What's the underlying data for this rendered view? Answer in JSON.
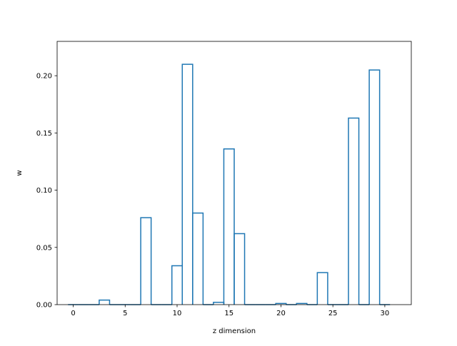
{
  "chart_data": {
    "type": "bar",
    "style": "step-outline",
    "xlabel": "z dimension",
    "ylabel": "w",
    "xlim": [
      -1.55,
      32.55
    ],
    "ylim": [
      0,
      0.23
    ],
    "grid": false,
    "line_color": "#1f77b4",
    "x": [
      0,
      1,
      2,
      3,
      4,
      5,
      6,
      7,
      8,
      9,
      10,
      11,
      12,
      13,
      14,
      15,
      16,
      17,
      18,
      19,
      20,
      21,
      22,
      23,
      24,
      25,
      26,
      27,
      28,
      29,
      30
    ],
    "values": [
      0.0,
      0.0,
      0.0,
      0.004,
      0.0,
      0.0,
      0.0,
      0.076,
      0.0,
      0.0,
      0.034,
      0.21,
      0.08,
      0.0,
      0.002,
      0.136,
      0.062,
      0.0,
      0.0,
      0.0,
      0.001,
      0.0,
      0.001,
      0.0,
      0.028,
      0.0,
      0.0,
      0.163,
      0.0,
      0.205,
      0.0
    ],
    "x_ticks": [
      0,
      5,
      10,
      15,
      20,
      25,
      30
    ],
    "x_tick_labels": [
      "0",
      "5",
      "10",
      "15",
      "20",
      "25",
      "30"
    ],
    "y_ticks": [
      0,
      0.05,
      0.1,
      0.15,
      0.2
    ],
    "y_tick_labels": [
      "0.00",
      "0.05",
      "0.10",
      "0.15",
      "0.20"
    ]
  }
}
